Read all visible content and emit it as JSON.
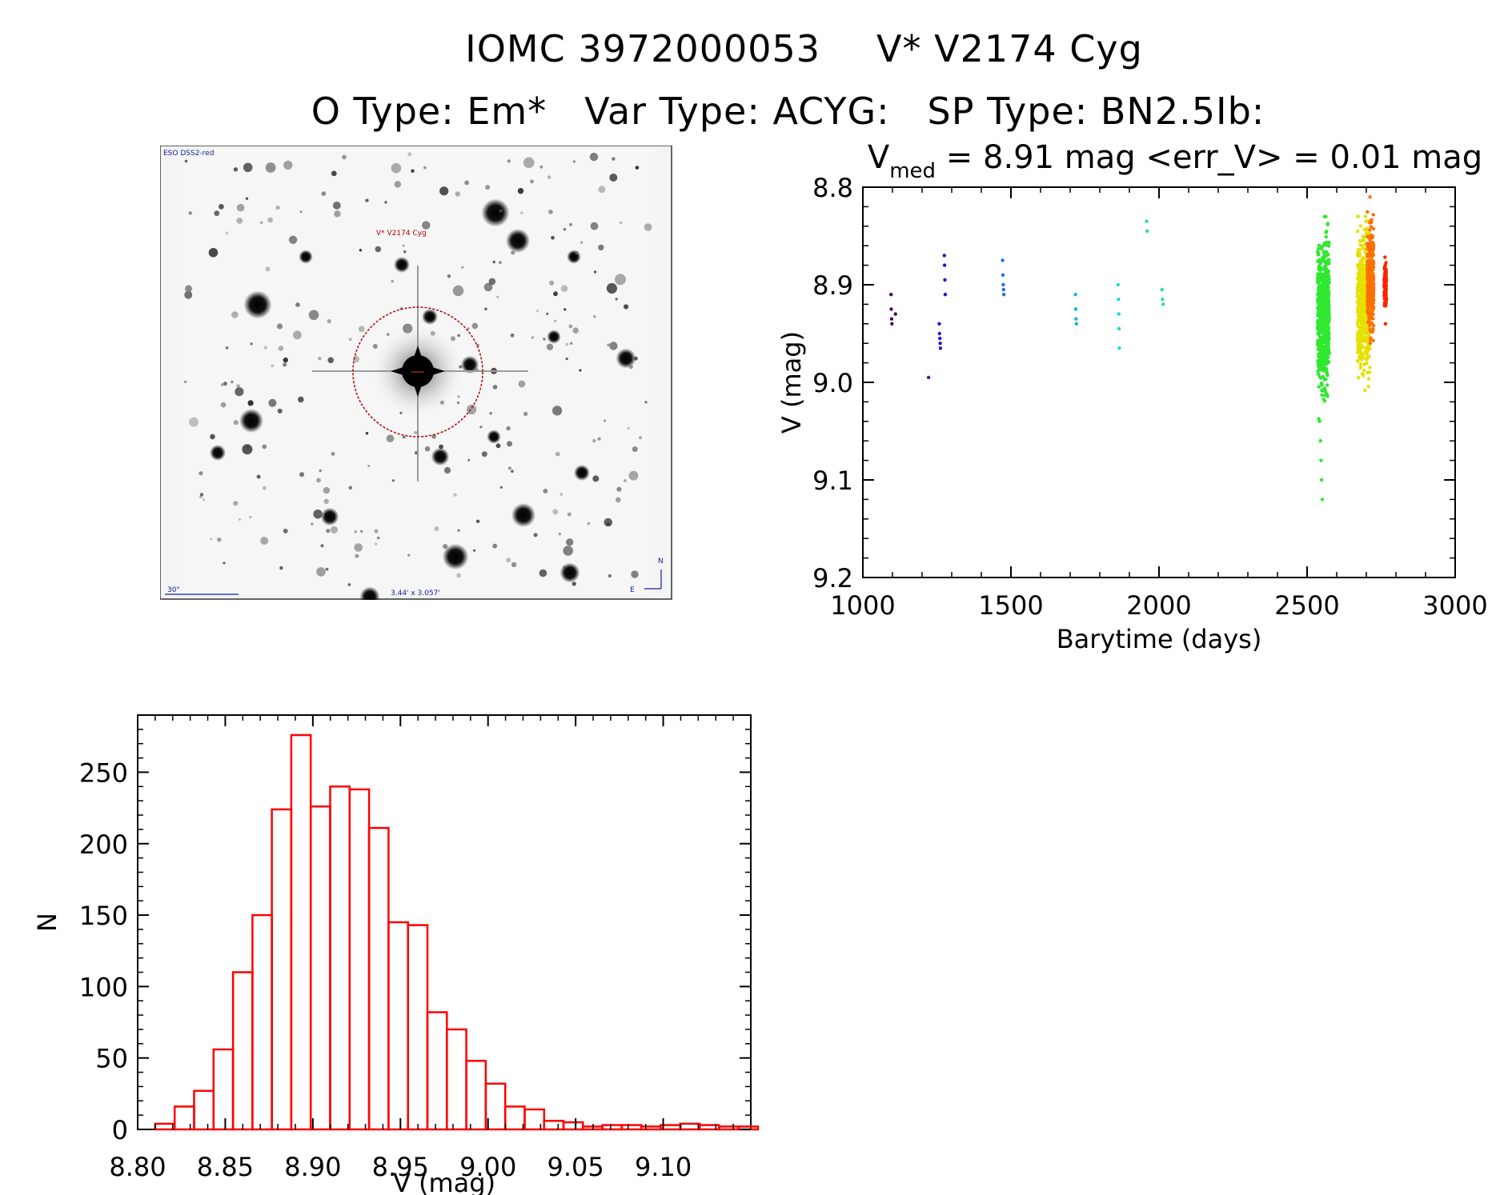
{
  "titles": {
    "line1_id": "IOMC 3972000053",
    "line1_name": "V* V2174 Cyg",
    "line2": "O Type: Em*   Var Type: ACYG:   SP Type: BN2.5Ib:"
  },
  "finder": {
    "survey_label": "ESO DSS2-red",
    "target_label": "V* V2174 Cyg",
    "scale_label": "30\"",
    "size_label": "3.44' x 3.057'",
    "north_label": "N",
    "east_label": "E"
  },
  "chart_data": [
    {
      "type": "scatter",
      "title": "V_med = 8.91 mag <err_V> = 0.01 mag",
      "title_parts": {
        "main": "V",
        "sub": "med",
        "rest": " = 8.91 mag <err_V> = 0.01 mag"
      },
      "xlabel": "Barytime (days)",
      "ylabel": "V (mag)",
      "xlim": [
        1000,
        3000
      ],
      "ylim": [
        8.8,
        9.2
      ],
      "y_inverted": true,
      "xticks": [
        "1000",
        "1500",
        "2000",
        "2500",
        "3000"
      ],
      "yticks": [
        "8.8",
        "8.9",
        "9.0",
        "9.1",
        "9.2"
      ],
      "groups": [
        {
          "color": "#4b0060",
          "x": [
            1095,
            1096,
            1097,
            1098,
            1110
          ],
          "y": [
            8.91,
            8.925,
            8.935,
            8.94,
            8.93
          ]
        },
        {
          "color": "#5a00b0",
          "x": [
            1222
          ],
          "y": [
            8.995
          ]
        },
        {
          "color": "#1a1ad0",
          "x": [
            1258,
            1259,
            1260,
            1261,
            1262,
            1275,
            1276,
            1277,
            1278
          ],
          "y": [
            8.94,
            8.95,
            8.955,
            8.96,
            8.965,
            8.87,
            8.88,
            8.895,
            8.91
          ]
        },
        {
          "color": "#1e6ef0",
          "x": [
            1472,
            1473,
            1474,
            1475,
            1476
          ],
          "y": [
            8.875,
            8.89,
            8.9,
            8.905,
            8.91
          ]
        },
        {
          "color": "#14b4e6",
          "x": [
            1718,
            1719,
            1720,
            1721
          ],
          "y": [
            8.91,
            8.925,
            8.935,
            8.94
          ]
        },
        {
          "color": "#20d8d8",
          "x": [
            1862,
            1863,
            1864,
            1865,
            1866
          ],
          "y": [
            8.9,
            8.915,
            8.93,
            8.945,
            8.965
          ]
        },
        {
          "color": "#28e08c",
          "x": [
            1958,
            1960,
            2010,
            2012,
            2014
          ],
          "y": [
            8.835,
            8.845,
            8.905,
            8.915,
            8.92
          ]
        },
        {
          "color": "#30e830",
          "x_range": [
            2535,
            2575
          ],
          "y_range": [
            8.83,
            9.04
          ],
          "y_center": 8.93,
          "n": 700,
          "extra_x": [
            2545,
            2547,
            2549,
            2551
          ],
          "extra_y": [
            9.06,
            9.08,
            9.1,
            9.12
          ]
        },
        {
          "color": "#e6e000",
          "x_range": [
            2670,
            2712
          ],
          "y_range": [
            8.83,
            9.025
          ],
          "y_center": 8.92,
          "n": 500
        },
        {
          "color": "#ff7000",
          "x_range": [
            2703,
            2725
          ],
          "y_range": [
            8.81,
            8.97
          ],
          "y_center": 8.89,
          "n": 350
        },
        {
          "color": "#ff2000",
          "x_range": [
            2760,
            2768
          ],
          "y_range": [
            8.86,
            8.94
          ],
          "y_center": 8.9,
          "n": 80
        }
      ]
    },
    {
      "type": "bar",
      "title": "",
      "xlabel": "V (mag)",
      "ylabel": "N",
      "xlim": [
        8.8,
        9.15
      ],
      "ylim": [
        0,
        290
      ],
      "xticks": [
        "8.80",
        "8.85",
        "8.90",
        "8.95",
        "9.00",
        "9.05",
        "9.10"
      ],
      "yticks": [
        "0",
        "50",
        "100",
        "150",
        "200",
        "250"
      ],
      "bin_start": 8.81,
      "bin_width": 0.0111,
      "values": [
        4,
        16,
        27,
        56,
        110,
        150,
        224,
        276,
        226,
        240,
        238,
        211,
        145,
        143,
        82,
        70,
        48,
        32,
        16,
        14,
        6,
        5,
        2,
        3,
        3,
        2,
        3,
        4,
        3,
        2,
        2
      ],
      "color": "#ff0000"
    }
  ]
}
